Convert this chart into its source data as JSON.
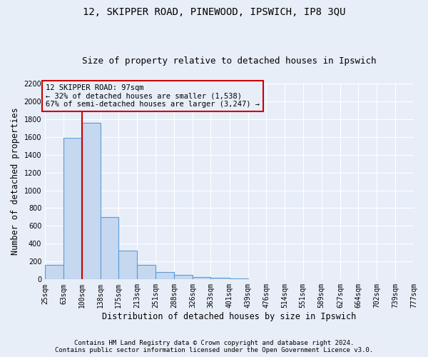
{
  "title1": "12, SKIPPER ROAD, PINEWOOD, IPSWICH, IP8 3QU",
  "title2": "Size of property relative to detached houses in Ipswich",
  "xlabel": "Distribution of detached houses by size in Ipswich",
  "ylabel": "Number of detached properties",
  "footer1": "Contains HM Land Registry data © Crown copyright and database right 2024.",
  "footer2": "Contains public sector information licensed under the Open Government Licence v3.0.",
  "bin_labels": [
    "25sqm",
    "63sqm",
    "100sqm",
    "138sqm",
    "175sqm",
    "213sqm",
    "251sqm",
    "288sqm",
    "326sqm",
    "363sqm",
    "401sqm",
    "439sqm",
    "476sqm",
    "514sqm",
    "551sqm",
    "589sqm",
    "627sqm",
    "664sqm",
    "702sqm",
    "739sqm",
    "777sqm"
  ],
  "bar_values": [
    160,
    1590,
    1760,
    700,
    320,
    160,
    80,
    50,
    25,
    18,
    10,
    0,
    0,
    0,
    0,
    0,
    0,
    0,
    0,
    0
  ],
  "bin_edges": [
    25,
    63,
    100,
    138,
    175,
    213,
    251,
    288,
    326,
    363,
    401,
    439,
    476,
    514,
    551,
    589,
    627,
    664,
    702,
    739,
    777
  ],
  "bar_color": "#c5d8f0",
  "bar_edge_color": "#5b9bd5",
  "vline_x": 100,
  "vline_color": "#cc0000",
  "annotation_text": "12 SKIPPER ROAD: 97sqm\n← 32% of detached houses are smaller (1,538)\n67% of semi-detached houses are larger (3,247) →",
  "ylim": [
    0,
    2200
  ],
  "yticks": [
    0,
    200,
    400,
    600,
    800,
    1000,
    1200,
    1400,
    1600,
    1800,
    2000,
    2200
  ],
  "bg_color": "#e8eef8",
  "grid_color": "#ffffff",
  "title1_fontsize": 10,
  "title2_fontsize": 9,
  "xlabel_fontsize": 8.5,
  "ylabel_fontsize": 8.5,
  "tick_fontsize": 7,
  "footer_fontsize": 6.5
}
